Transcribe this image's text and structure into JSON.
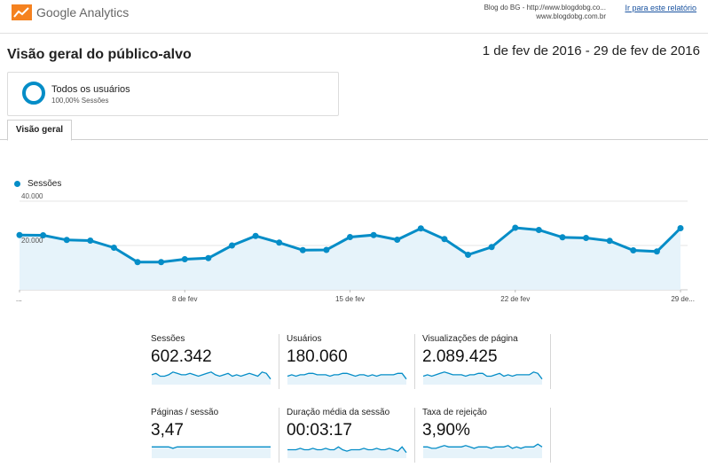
{
  "header": {
    "app_name": "Google Analytics",
    "account_line1": "Blog do BG - http://www.blogdobg.co...",
    "account_line2": "www.blogdobg.com.br",
    "report_link": "Ir para este relatório"
  },
  "page": {
    "title": "Visão geral do público-alvo",
    "date_range": "1 de fev de 2016 - 29 de fev de 2016"
  },
  "segment": {
    "name": "Todos os usuários",
    "percent": "100,00% Sessões"
  },
  "tabs": [
    {
      "label": "Visão geral"
    }
  ],
  "colors": {
    "accent": "#058dc7",
    "fill": "#e6f3fa",
    "link": "#1a53a0"
  },
  "chart_data": {
    "type": "line",
    "series": [
      {
        "name": "Sessões",
        "values": [
          24700,
          24600,
          22500,
          22200,
          19000,
          12500,
          12500,
          13800,
          14300,
          20000,
          24300,
          21300,
          17900,
          18000,
          23800,
          24700,
          22600,
          27700,
          22900,
          15800,
          19300,
          28000,
          27000,
          23700,
          23400,
          22100,
          17800,
          17300,
          27800
        ]
      }
    ],
    "x_tick_labels": [
      "...",
      "8 de fev",
      "15 de fev",
      "22 de fev",
      "29 de..."
    ],
    "y_tick_labels": [
      "40.000",
      "20.000"
    ],
    "ylim": [
      0,
      40000
    ],
    "grid": true,
    "legend_position": "top-left"
  },
  "metrics": [
    {
      "label": "Sessões",
      "value": "602.342",
      "spark": [
        7,
        8,
        6,
        6,
        7,
        9,
        8,
        7,
        7,
        8,
        7,
        6,
        7,
        8,
        9,
        7,
        6,
        7,
        8,
        6,
        7,
        6,
        7,
        8,
        7,
        6,
        9,
        8,
        4
      ]
    },
    {
      "label": "Usuários",
      "value": "180.060",
      "spark": [
        6,
        7,
        6,
        7,
        7,
        8,
        8,
        7,
        7,
        7,
        6,
        7,
        7,
        8,
        8,
        7,
        6,
        7,
        7,
        6,
        7,
        6,
        7,
        7,
        7,
        7,
        8,
        8,
        4
      ]
    },
    {
      "label": "Visualizações de página",
      "value": "2.089.425",
      "spark": [
        6,
        7,
        6,
        7,
        8,
        9,
        8,
        7,
        7,
        7,
        6,
        7,
        7,
        8,
        8,
        6,
        6,
        7,
        8,
        6,
        7,
        6,
        7,
        7,
        7,
        7,
        9,
        8,
        4
      ]
    },
    {
      "label": "Páginas / sessão",
      "value": "3,47",
      "spark": [
        8,
        8,
        8,
        8,
        8,
        7,
        8,
        8,
        8,
        8,
        8,
        8,
        8,
        8,
        8,
        8,
        8,
        8,
        8,
        8,
        8,
        8,
        8,
        8,
        8,
        8,
        8,
        8,
        8
      ]
    },
    {
      "label": "Duração média da sessão",
      "value": "00:03:17",
      "spark": [
        6,
        6,
        6,
        7,
        6,
        6,
        7,
        6,
        6,
        7,
        6,
        6,
        8,
        6,
        5,
        6,
        6,
        6,
        7,
        6,
        6,
        7,
        6,
        6,
        7,
        6,
        5,
        8,
        4
      ]
    },
    {
      "label": "Taxa de rejeição",
      "value": "3,90%",
      "spark": [
        8,
        8,
        7,
        7,
        8,
        9,
        8,
        8,
        8,
        8,
        9,
        8,
        7,
        8,
        8,
        8,
        7,
        8,
        8,
        8,
        9,
        7,
        8,
        7,
        8,
        8,
        8,
        10,
        8
      ]
    }
  ]
}
